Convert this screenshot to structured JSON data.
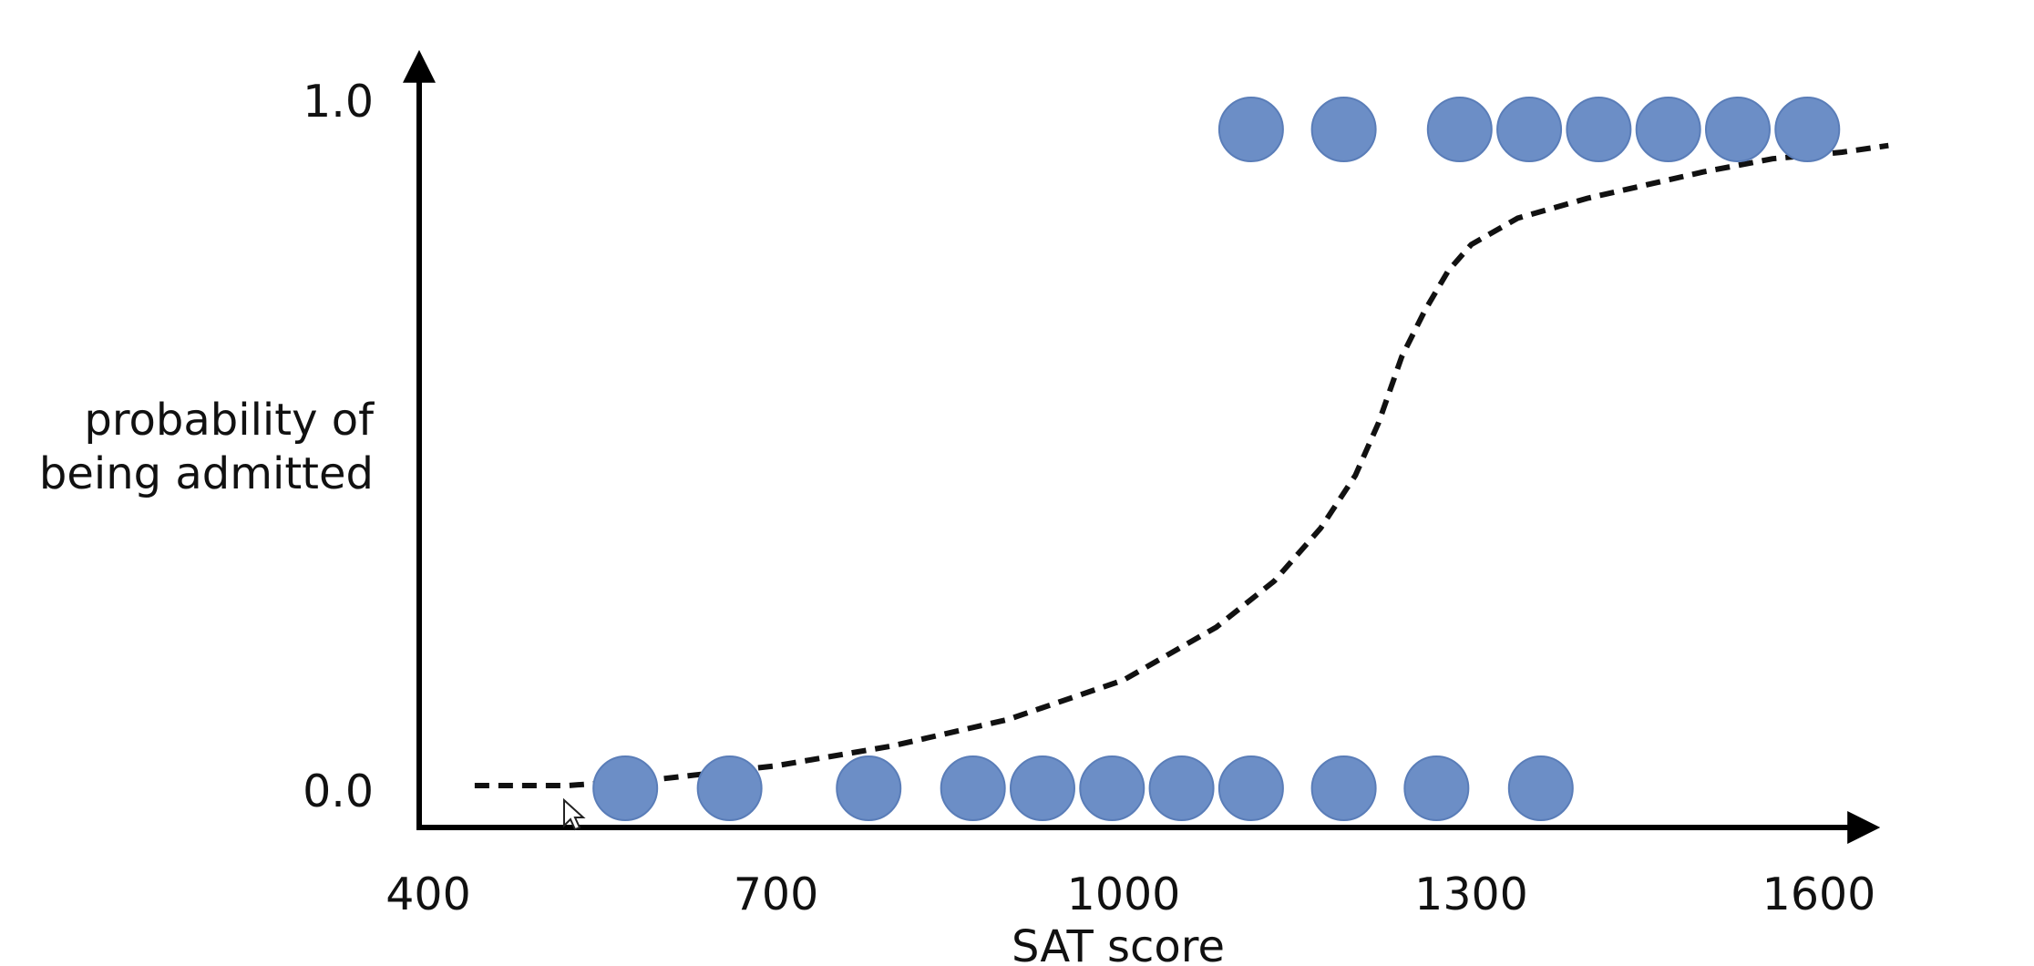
{
  "chart_data": {
    "type": "scatter",
    "title": "",
    "xlabel": "SAT score",
    "ylabel_lines": [
      "probability of",
      "being admitted"
    ],
    "xlim": [
      400,
      1680
    ],
    "ylim": [
      0.0,
      1.0
    ],
    "x_ticks": [
      {
        "value": 400,
        "label": "400"
      },
      {
        "value": 700,
        "label": "700"
      },
      {
        "value": 1000,
        "label": "1000"
      },
      {
        "value": 1300,
        "label": "1300"
      },
      {
        "value": 1600,
        "label": "1600"
      }
    ],
    "y_ticks": [
      {
        "value": 0.0,
        "label": "0.0"
      },
      {
        "value": 1.0,
        "label": "1.0"
      }
    ],
    "grid": false,
    "series": [
      {
        "role": "observations",
        "x": [
          570,
          660,
          780,
          870,
          930,
          990,
          1050,
          1110,
          1190,
          1270,
          1360,
          1110,
          1190,
          1290,
          1350,
          1410,
          1470,
          1530,
          1590
        ],
        "y": [
          0,
          0,
          0,
          0,
          0,
          0,
          0,
          0,
          0,
          0,
          0,
          1,
          1,
          1,
          1,
          1,
          1,
          1,
          1
        ]
      },
      {
        "role": "logistic-fit",
        "style": "dashed",
        "x": [
          440,
          520,
          600,
          700,
          800,
          900,
          1000,
          1080,
          1130,
          1170,
          1200,
          1220,
          1240,
          1260,
          1280,
          1300,
          1340,
          1400,
          1450,
          1500,
          1560,
          1620,
          1660
        ],
        "y": [
          0.0,
          0.0,
          0.01,
          0.03,
          0.06,
          0.1,
          0.16,
          0.24,
          0.31,
          0.39,
          0.47,
          0.55,
          0.65,
          0.72,
          0.78,
          0.82,
          0.86,
          0.89,
          0.91,
          0.93,
          0.95,
          0.96,
          0.97
        ]
      }
    ],
    "colors": {
      "points": "#6c8ec6",
      "curve": "#111111",
      "axes": "#000000"
    }
  }
}
